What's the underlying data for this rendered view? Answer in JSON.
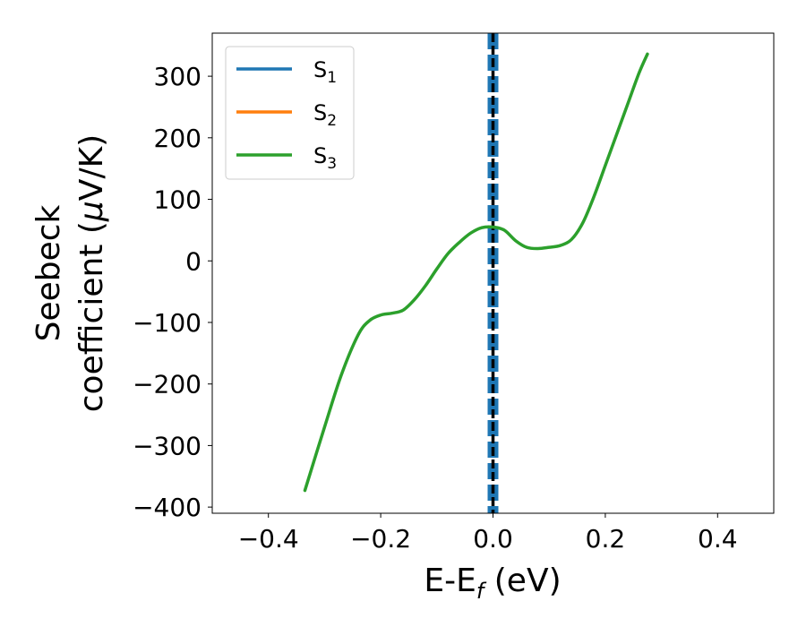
{
  "chart_data": {
    "type": "line",
    "xlabel": {
      "main": "E-E",
      "sub": "f",
      "unit": " (eV)"
    },
    "ylabel": {
      "line1": "Seebeck",
      "line2_pre": "coefficient  (",
      "line2_mu": "μ",
      "line2_post": "V/K)"
    },
    "xlim": [
      -0.5,
      0.5
    ],
    "ylim": [
      -410,
      370
    ],
    "xticks": [
      -0.4,
      -0.2,
      0.0,
      0.2,
      0.4
    ],
    "xtick_labels": [
      "−0.4",
      "−0.2",
      "0.0",
      "0.2",
      "0.4"
    ],
    "yticks": [
      -400,
      -300,
      -200,
      -100,
      0,
      100,
      200,
      300
    ],
    "ytick_labels": [
      "−400",
      "−300",
      "−200",
      "−100",
      "0",
      "100",
      "200",
      "300"
    ],
    "legend_position": "top-left",
    "fermi_line": {
      "x": 0.0,
      "color": "#000000",
      "style": "dashed"
    },
    "vertical_band": {
      "x": 0.0,
      "color": "#1f77b4",
      "style": "dashed"
    },
    "series": [
      {
        "name": {
          "base": "S",
          "sub": "1"
        },
        "color": "#1f77b4",
        "x": [],
        "y": []
      },
      {
        "name": {
          "base": "S",
          "sub": "2"
        },
        "color": "#ff7f0e",
        "x": [],
        "y": []
      },
      {
        "name": {
          "base": "S",
          "sub": "3"
        },
        "color": "#2ca02c",
        "x": [
          -0.335,
          -0.3,
          -0.27,
          -0.24,
          -0.22,
          -0.2,
          -0.18,
          -0.16,
          -0.14,
          -0.12,
          -0.1,
          -0.08,
          -0.06,
          -0.04,
          -0.02,
          0.0,
          0.02,
          0.04,
          0.06,
          0.08,
          0.1,
          0.12,
          0.14,
          0.16,
          0.18,
          0.2,
          0.22,
          0.24,
          0.26,
          0.275
        ],
        "y": [
          -373,
          -270,
          -185,
          -120,
          -97,
          -88,
          -85,
          -80,
          -63,
          -40,
          -13,
          12,
          30,
          45,
          54,
          55,
          50,
          33,
          22,
          20,
          22,
          25,
          35,
          62,
          105,
          155,
          205,
          255,
          305,
          336
        ]
      }
    ]
  }
}
